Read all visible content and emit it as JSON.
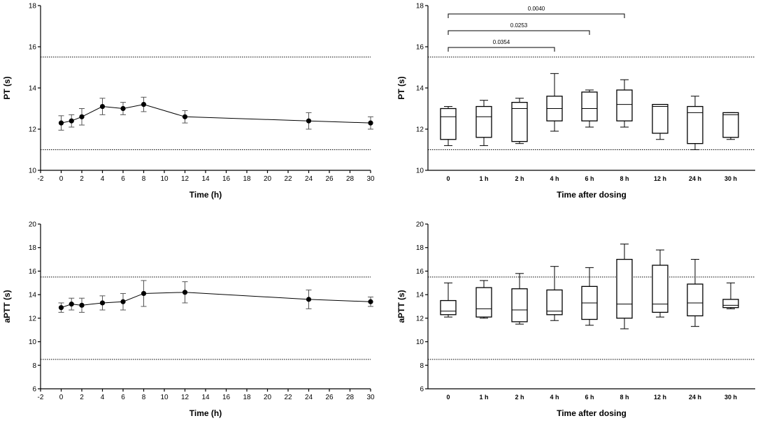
{
  "chart_data": [
    {
      "id": "pt-mean",
      "type": "line",
      "ylabel": "PT (s)",
      "xlabel": "Time (h)",
      "ylim": [
        10,
        18
      ],
      "yticks": [
        10,
        12,
        14,
        16,
        18
      ],
      "xlim": [
        -2,
        30
      ],
      "xticks": [
        -2,
        0,
        2,
        4,
        6,
        8,
        10,
        12,
        14,
        16,
        18,
        20,
        22,
        24,
        26,
        28,
        30
      ],
      "ref_lines": [
        15.5,
        11
      ],
      "series": [
        {
          "name": "PT",
          "x": [
            0,
            1,
            2,
            4,
            6,
            8,
            12,
            24,
            30
          ],
          "y": [
            12.3,
            12.4,
            12.6,
            13.1,
            13.0,
            13.2,
            12.6,
            12.4,
            12.3
          ],
          "err": [
            0.35,
            0.3,
            0.4,
            0.4,
            0.3,
            0.35,
            0.3,
            0.4,
            0.3
          ]
        }
      ]
    },
    {
      "id": "pt-box",
      "type": "box",
      "ylabel": "PT (s)",
      "xlabel": "Time after dosing",
      "ylim": [
        10,
        18
      ],
      "yticks": [
        10,
        12,
        14,
        16,
        18
      ],
      "ref_lines": [
        15.5,
        11
      ],
      "categories": [
        "0",
        "1 h",
        "2 h",
        "4 h",
        "6 h",
        "8 h",
        "12 h",
        "24 h",
        "30 h"
      ],
      "boxes": [
        {
          "min": 11.2,
          "q1": 11.5,
          "median": 12.6,
          "q3": 13.0,
          "max": 13.1
        },
        {
          "min": 11.2,
          "q1": 11.6,
          "median": 12.6,
          "q3": 13.1,
          "max": 13.4
        },
        {
          "min": 11.3,
          "q1": 11.4,
          "median": 13.0,
          "q3": 13.3,
          "max": 13.5
        },
        {
          "min": 11.9,
          "q1": 12.4,
          "median": 13.0,
          "q3": 13.6,
          "max": 14.7
        },
        {
          "min": 12.1,
          "q1": 12.4,
          "median": 13.0,
          "q3": 13.8,
          "max": 13.9
        },
        {
          "min": 12.1,
          "q1": 12.4,
          "median": 13.2,
          "q3": 13.9,
          "max": 14.4
        },
        {
          "min": 11.5,
          "q1": 11.8,
          "median": 13.1,
          "q3": 13.2,
          "max": 13.2
        },
        {
          "min": 11.0,
          "q1": 11.3,
          "median": 12.8,
          "q3": 13.1,
          "max": 13.6
        },
        {
          "min": 11.5,
          "q1": 11.6,
          "median": 12.7,
          "q3": 12.8,
          "max": 12.8
        }
      ],
      "annotations": [
        {
          "from": "0",
          "to": "8 h",
          "label": "0.0040"
        },
        {
          "from": "0",
          "to": "6 h",
          "label": "0.0253"
        },
        {
          "from": "0",
          "to": "4 h",
          "label": "0.0354"
        }
      ]
    },
    {
      "id": "aptt-mean",
      "type": "line",
      "ylabel": "aPTT (s)",
      "xlabel": "Time (h)",
      "ylim": [
        6,
        20
      ],
      "yticks": [
        6,
        8,
        10,
        12,
        14,
        16,
        18,
        20
      ],
      "xlim": [
        -2,
        30
      ],
      "xticks": [
        -2,
        0,
        2,
        4,
        6,
        8,
        10,
        12,
        14,
        16,
        18,
        20,
        22,
        24,
        26,
        28,
        30
      ],
      "ref_lines": [
        15.5,
        8.5
      ],
      "series": [
        {
          "name": "aPTT",
          "x": [
            0,
            1,
            2,
            4,
            6,
            8,
            12,
            24,
            30
          ],
          "y": [
            12.9,
            13.2,
            13.1,
            13.3,
            13.4,
            14.1,
            14.2,
            13.6,
            13.4
          ],
          "err": [
            0.4,
            0.5,
            0.6,
            0.6,
            0.7,
            1.1,
            0.9,
            0.8,
            0.4
          ]
        }
      ]
    },
    {
      "id": "aptt-box",
      "type": "box",
      "ylabel": "aPTT (s)",
      "xlabel": "Time after dosing",
      "ylim": [
        6,
        20
      ],
      "yticks": [
        6,
        8,
        10,
        12,
        14,
        16,
        18,
        20
      ],
      "ref_lines": [
        15.5,
        8.5
      ],
      "categories": [
        "0",
        "1 h",
        "2 h",
        "4 h",
        "6 h",
        "8 h",
        "12 h",
        "24 h",
        "30 h"
      ],
      "boxes": [
        {
          "min": 12.1,
          "q1": 12.3,
          "median": 12.6,
          "q3": 13.5,
          "max": 15.0
        },
        {
          "min": 12.0,
          "q1": 12.1,
          "median": 12.8,
          "q3": 14.6,
          "max": 15.2
        },
        {
          "min": 11.5,
          "q1": 11.7,
          "median": 12.7,
          "q3": 14.5,
          "max": 15.8
        },
        {
          "min": 11.8,
          "q1": 12.3,
          "median": 12.6,
          "q3": 14.4,
          "max": 16.4
        },
        {
          "min": 11.4,
          "q1": 11.9,
          "median": 13.3,
          "q3": 14.7,
          "max": 16.3
        },
        {
          "min": 11.1,
          "q1": 12.0,
          "median": 13.2,
          "q3": 17.0,
          "max": 18.3
        },
        {
          "min": 12.1,
          "q1": 12.5,
          "median": 13.2,
          "q3": 16.5,
          "max": 17.8
        },
        {
          "min": 11.3,
          "q1": 12.2,
          "median": 13.3,
          "q3": 14.9,
          "max": 17.0
        },
        {
          "min": 12.8,
          "q1": 12.9,
          "median": 13.1,
          "q3": 13.6,
          "max": 15.0
        }
      ],
      "annotations": []
    }
  ]
}
